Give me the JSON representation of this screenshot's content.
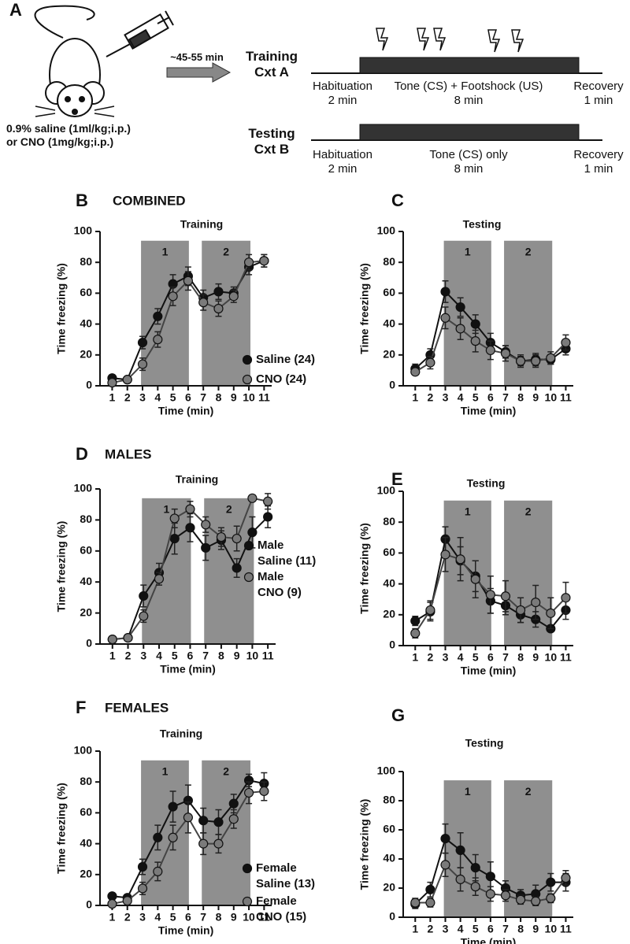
{
  "schematic": {
    "panel": "A",
    "treatment": "0.9% saline (1ml/kg;i.p.)\nor CNO (1mg/kg;i.p.)",
    "delay": "~45-55 min",
    "training": {
      "label": "Training\nCxt A",
      "habituation": "Habituation\n2 min",
      "main": "Tone (CS) + Footshock (US)\n8 min",
      "recovery": "Recovery\n1 min"
    },
    "testing": {
      "label": "Testing\nCxt B",
      "habituation": "Habituation\n2 min",
      "main": "Tone (CS) only\n8 min",
      "recovery": "Recovery\n1 min"
    }
  },
  "chart_data": [
    {
      "type": "line",
      "panel": "B",
      "heading": "COMBINED",
      "title": "Training",
      "x_label": "Time (min)",
      "y_label": "Time freezing (%)",
      "x": [
        1,
        2,
        3,
        4,
        5,
        6,
        7,
        8,
        9,
        10,
        11
      ],
      "xlim": [
        0.2,
        11.5
      ],
      "xticks": [
        1,
        2,
        3,
        4,
        5,
        6,
        7,
        8,
        9,
        10,
        11
      ],
      "ylim": [
        0,
        100
      ],
      "yticks": [
        0,
        20,
        40,
        60,
        80,
        100
      ],
      "regions": [
        {
          "label": "1",
          "start": 2.9,
          "end": 6.05,
          "top": 94
        },
        {
          "label": "2",
          "start": 6.9,
          "end": 10.1,
          "top": 94
        }
      ],
      "series": [
        {
          "name": "Saline (24)",
          "color": "#111111",
          "values": [
            5,
            4,
            28,
            45,
            66,
            71,
            57,
            61,
            60,
            77,
            81
          ],
          "errors": [
            2,
            1,
            4,
            5,
            6,
            6,
            5,
            5,
            4,
            5,
            4
          ]
        },
        {
          "name": "CNO (24)",
          "color": "#7a7a7a",
          "values": [
            2,
            4,
            14,
            30,
            58,
            68,
            54,
            50,
            58,
            80,
            81
          ],
          "errors": [
            1,
            1,
            4,
            5,
            6,
            6,
            5,
            5,
            4,
            5,
            4
          ]
        }
      ]
    },
    {
      "type": "line",
      "panel": "C",
      "title": "Testing",
      "x_label": "Time (min)",
      "y_label": "Time freezing (%)",
      "x": [
        1,
        2,
        3,
        4,
        5,
        6,
        7,
        8,
        9,
        10,
        11
      ],
      "xlim": [
        0.2,
        11.5
      ],
      "xticks": [
        1,
        2,
        3,
        4,
        5,
        6,
        7,
        8,
        9,
        10,
        11
      ],
      "ylim": [
        0,
        100
      ],
      "yticks": [
        0,
        20,
        40,
        60,
        80,
        100
      ],
      "regions": [
        {
          "label": "1",
          "start": 2.9,
          "end": 6.05,
          "top": 94
        },
        {
          "label": "2",
          "start": 6.9,
          "end": 10.1,
          "top": 94
        }
      ],
      "series": [
        {
          "name": "Saline (24)",
          "color": "#111111",
          "values": [
            11,
            20,
            61,
            51,
            40,
            28,
            22,
            16,
            17,
            17,
            24
          ],
          "errors": [
            3,
            4,
            7,
            6,
            6,
            6,
            4,
            3,
            4,
            3,
            4
          ]
        },
        {
          "name": "CNO (24)",
          "color": "#7a7a7a",
          "values": [
            9,
            15,
            44,
            37,
            29,
            23,
            21,
            16,
            16,
            18,
            28
          ],
          "errors": [
            2,
            4,
            7,
            7,
            7,
            6,
            5,
            4,
            4,
            4,
            5
          ]
        }
      ]
    },
    {
      "type": "line",
      "panel": "D",
      "heading": "MALES",
      "title": "Training",
      "x_label": "Time (min)",
      "y_label": "Time freezing (%)",
      "x": [
        1,
        2,
        3,
        4,
        5,
        6,
        7,
        8,
        9,
        10,
        11
      ],
      "xlim": [
        0.2,
        11.5
      ],
      "xticks": [
        1,
        2,
        3,
        4,
        5,
        6,
        7,
        8,
        9,
        10,
        11
      ],
      "ylim": [
        0,
        100
      ],
      "yticks": [
        0,
        20,
        40,
        60,
        80,
        100
      ],
      "regions": [
        {
          "label": "1",
          "start": 2.9,
          "end": 6.05,
          "top": 94
        },
        {
          "label": "2",
          "start": 6.9,
          "end": 10.1,
          "top": 94
        }
      ],
      "series": [
        {
          "name": "Male\nSaline (11)",
          "color": "#111111",
          "values": [
            3,
            4,
            31,
            46,
            68,
            75,
            62,
            67,
            49,
            72,
            82
          ],
          "errors": [
            1,
            1,
            7,
            6,
            10,
            9,
            8,
            6,
            6,
            10,
            7
          ]
        },
        {
          "name": "Male\nCNO (9)",
          "color": "#7a7a7a",
          "values": [
            3,
            4,
            18,
            42,
            81,
            87,
            77,
            69,
            68,
            94,
            92
          ],
          "errors": [
            1,
            1,
            4,
            4,
            6,
            5,
            5,
            6,
            8,
            2,
            5
          ]
        }
      ]
    },
    {
      "type": "line",
      "panel": "E",
      "title": "Testing",
      "x_label": "Time (min)",
      "y_label": "Time freezing (%)",
      "x": [
        1,
        2,
        3,
        4,
        5,
        6,
        7,
        8,
        9,
        10,
        11
      ],
      "xlim": [
        0.2,
        11.5
      ],
      "xticks": [
        1,
        2,
        3,
        4,
        5,
        6,
        7,
        8,
        9,
        10,
        11
      ],
      "ylim": [
        0,
        100
      ],
      "yticks": [
        0,
        20,
        40,
        60,
        80,
        100
      ],
      "regions": [
        {
          "label": "1",
          "start": 2.9,
          "end": 6.05,
          "top": 94
        },
        {
          "label": "2",
          "start": 6.9,
          "end": 10.1,
          "top": 94
        }
      ],
      "series": [
        {
          "name": "Male\nSaline (11)",
          "color": "#111111",
          "values": [
            16,
            22,
            69,
            55,
            45,
            29,
            26,
            20,
            17,
            11,
            23
          ],
          "errors": [
            3,
            6,
            8,
            9,
            10,
            8,
            6,
            5,
            5,
            2,
            6
          ]
        },
        {
          "name": "Male\nCNO (9)",
          "color": "#7a7a7a",
          "values": [
            8,
            23,
            59,
            56,
            43,
            33,
            32,
            23,
            28,
            21,
            31
          ],
          "errors": [
            3,
            6,
            11,
            14,
            12,
            12,
            10,
            8,
            11,
            10,
            10
          ]
        }
      ]
    },
    {
      "type": "line",
      "panel": "F",
      "heading": "FEMALES",
      "title": "Training",
      "x_label": "Time (min)",
      "y_label": "Time freezing (%)",
      "x": [
        1,
        2,
        3,
        4,
        5,
        6,
        7,
        8,
        9,
        10,
        11
      ],
      "xlim": [
        0.2,
        11.5
      ],
      "xticks": [
        1,
        2,
        3,
        4,
        5,
        6,
        7,
        8,
        9,
        10,
        11
      ],
      "ylim": [
        0,
        100
      ],
      "yticks": [
        0,
        20,
        40,
        60,
        80,
        100
      ],
      "regions": [
        {
          "label": "1",
          "start": 2.9,
          "end": 6.05,
          "top": 94
        },
        {
          "label": "2",
          "start": 6.9,
          "end": 10.1,
          "top": 94
        }
      ],
      "series": [
        {
          "name": "Female\nSaline (13)",
          "color": "#111111",
          "values": [
            6,
            5,
            25,
            44,
            64,
            68,
            55,
            54,
            66,
            81,
            79
          ],
          "errors": [
            1,
            1,
            5,
            8,
            10,
            10,
            8,
            8,
            6,
            4,
            7
          ]
        },
        {
          "name": "Female\nCNO (15)",
          "color": "#7a7a7a",
          "values": [
            1,
            3,
            11,
            22,
            44,
            57,
            40,
            40,
            56,
            73,
            74
          ],
          "errors": [
            1,
            1,
            4,
            6,
            8,
            10,
            7,
            6,
            6,
            7,
            6
          ]
        }
      ]
    },
    {
      "type": "line",
      "panel": "G",
      "title": "Testing",
      "x_label": "Time (min)",
      "y_label": "Time freezing (%)",
      "x": [
        1,
        2,
        3,
        4,
        5,
        6,
        7,
        8,
        9,
        10,
        11
      ],
      "xlim": [
        0.2,
        11.5
      ],
      "xticks": [
        1,
        2,
        3,
        4,
        5,
        6,
        7,
        8,
        9,
        10,
        11
      ],
      "ylim": [
        0,
        100
      ],
      "yticks": [
        0,
        20,
        40,
        60,
        80,
        100
      ],
      "regions": [
        {
          "label": "1",
          "start": 2.9,
          "end": 6.05,
          "top": 94
        },
        {
          "label": "2",
          "start": 6.9,
          "end": 10.1,
          "top": 94
        }
      ],
      "series": [
        {
          "name": "Female\nSaline (13)",
          "color": "#111111",
          "values": [
            9,
            19,
            54,
            46,
            34,
            28,
            20,
            15,
            16,
            24,
            24
          ],
          "errors": [
            3,
            5,
            10,
            12,
            9,
            10,
            5,
            4,
            6,
            6,
            6
          ]
        },
        {
          "name": "Female\nCNO (15)",
          "color": "#7a7a7a",
          "values": [
            10,
            10,
            36,
            26,
            21,
            16,
            15,
            12,
            11,
            13,
            27
          ],
          "errors": [
            3,
            3,
            8,
            8,
            6,
            5,
            4,
            3,
            3,
            3,
            5
          ]
        }
      ]
    }
  ]
}
